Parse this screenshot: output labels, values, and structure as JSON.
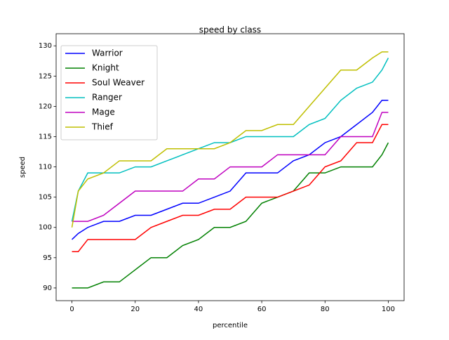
{
  "chart_data": {
    "type": "line",
    "title": "speed by class",
    "x_label": "percentile",
    "y_label": "speed",
    "x": [
      0,
      2,
      5,
      10,
      15,
      20,
      25,
      30,
      35,
      40,
      45,
      50,
      55,
      60,
      65,
      70,
      75,
      80,
      85,
      90,
      95,
      98,
      100
    ],
    "series": [
      {
        "name": "Warrior",
        "color": "#0000ff",
        "values": [
          98,
          99,
          100,
          101,
          101,
          102,
          102,
          103,
          104,
          104,
          105,
          106,
          109,
          109,
          109,
          111,
          112,
          114,
          115,
          117,
          119,
          121,
          121
        ]
      },
      {
        "name": "Knight",
        "color": "#008000",
        "values": [
          90,
          90,
          90,
          91,
          91,
          93,
          95,
          95,
          97,
          98,
          100,
          100,
          101,
          104,
          105,
          106,
          109,
          109,
          110,
          110,
          110,
          112,
          114
        ]
      },
      {
        "name": "Soul Weaver",
        "color": "#ff0000",
        "values": [
          96,
          96,
          98,
          98,
          98,
          98,
          100,
          101,
          102,
          102,
          103,
          103,
          105,
          105,
          105,
          106,
          107,
          110,
          111,
          114,
          114,
          117,
          117
        ]
      },
      {
        "name": "Ranger",
        "color": "#00bfbf",
        "values": [
          101,
          106,
          109,
          109,
          109,
          110,
          110,
          111,
          112,
          113,
          114,
          114,
          115,
          115,
          115,
          115,
          117,
          118,
          121,
          123,
          124,
          126,
          128
        ]
      },
      {
        "name": "Mage",
        "color": "#bf00bf",
        "values": [
          101,
          101,
          101,
          102,
          104,
          106,
          106,
          106,
          106,
          108,
          108,
          110,
          110,
          110,
          112,
          112,
          112,
          112,
          115,
          115,
          115,
          119,
          119
        ]
      },
      {
        "name": "Thief",
        "color": "#bfbf00",
        "values": [
          100,
          106,
          108,
          109,
          111,
          111,
          111,
          113,
          113,
          113,
          113,
          114,
          116,
          116,
          117,
          117,
          120,
          123,
          126,
          126,
          128,
          129,
          129
        ]
      }
    ],
    "xlim": [
      -5,
      105
    ],
    "xticks": [
      0,
      20,
      40,
      60,
      80,
      100
    ],
    "ylim": [
      87.9,
      132
    ],
    "yticks": [
      90,
      95,
      100,
      105,
      110,
      115,
      120,
      125,
      130
    ],
    "legend": "upper left"
  }
}
